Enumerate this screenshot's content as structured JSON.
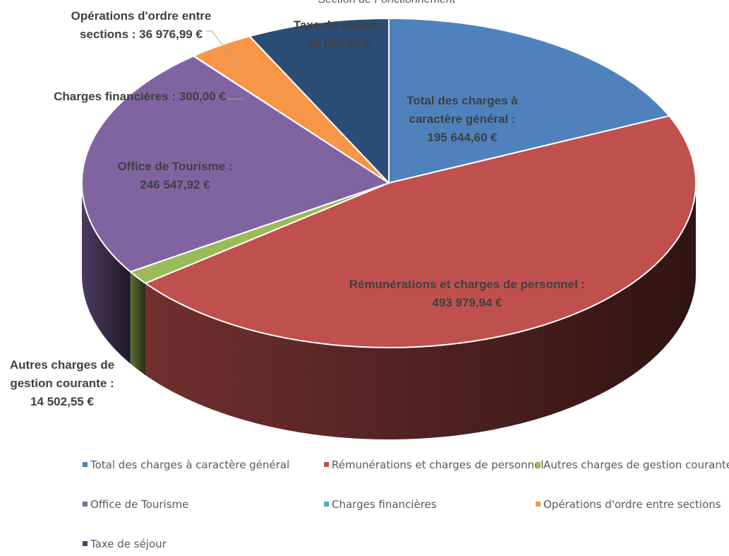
{
  "chart_data": {
    "type": "pie",
    "variant": "3d",
    "title": "Section de Fonctionnement",
    "currency_symbol": "€",
    "legend_position": "bottom",
    "series": [
      {
        "name": "Section de Fonctionnement",
        "values": [
          195644.6,
          493979.94,
          14502.55,
          246547.92,
          300.0,
          36976.99,
          80000.0
        ]
      }
    ],
    "categories": [
      "Total des charges à caractère général",
      "Rémunérations et charges de personnel",
      "Autres charges de gestion courante",
      "Office de Tourisme",
      "Charges financières",
      "Opérations d'ordre entre sections",
      "Taxe de séjour"
    ],
    "slices": [
      {
        "category": "Total des charges à caractère général",
        "value": 195644.6,
        "label_lines": [
          "Total des charges à",
          "caractère général :",
          "195 644,60 €"
        ],
        "color": "#4F81BD"
      },
      {
        "category": "Rémunérations et charges de personnel",
        "value": 493979.94,
        "label_lines": [
          "Rémunérations et charges de personnel :",
          "493 979,94 €"
        ],
        "color": "#C0504D"
      },
      {
        "category": "Autres charges de gestion courante",
        "value": 14502.55,
        "label_lines": [
          "Autres charges de",
          "gestion courante :",
          "14 502,55 €"
        ],
        "color": "#9BBB59"
      },
      {
        "category": "Office de Tourisme",
        "value": 246547.92,
        "label_lines": [
          "Office de Tourisme :",
          "246 547,92 €"
        ],
        "color": "#8064A2"
      },
      {
        "category": "Charges financières",
        "value": 300.0,
        "label_lines": [
          "Charges financières :  300,00 €"
        ],
        "color": "#4BACC6"
      },
      {
        "category": "Opérations d'ordre entre sections",
        "value": 36976.99,
        "label_lines": [
          "Opérations d'ordre entre",
          "sections :  36 976,99 €"
        ],
        "color": "#F79646"
      },
      {
        "category": "Taxe de séjour",
        "value": 80000.0,
        "label_lines": [
          "Taxe de séjour :",
          "80 000,00 €"
        ],
        "color": "#2C4D75"
      }
    ]
  }
}
